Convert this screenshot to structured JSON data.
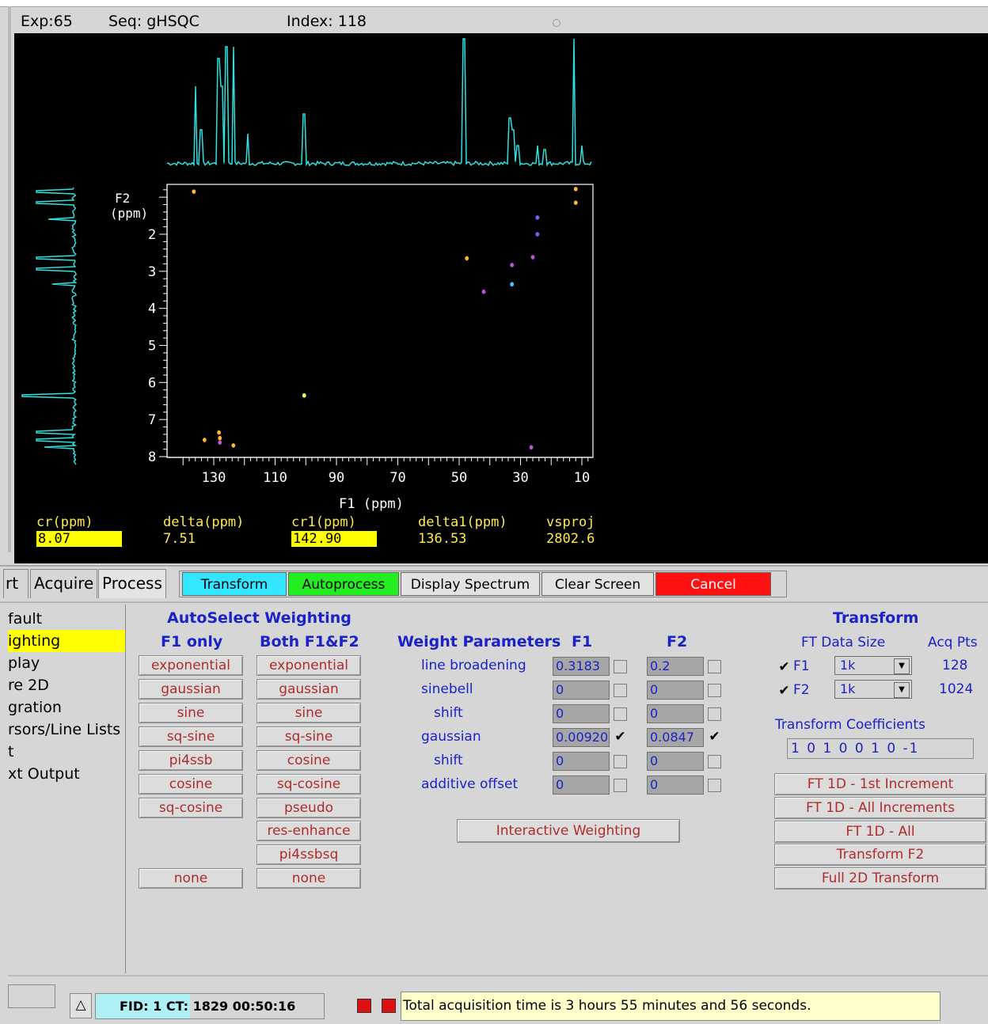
{
  "status": {
    "exp": "Exp:65",
    "seq": "Seq: gHSQC",
    "index": "Index: 118"
  },
  "plot": {
    "f2_label": "F2",
    "f2_unit": "(ppm)",
    "f2_ticks": [
      "2",
      "3",
      "4",
      "5",
      "6",
      "7",
      "8"
    ],
    "f1_ticks": [
      "130",
      "110",
      "90",
      "70",
      "50",
      "30",
      "10"
    ],
    "f1_axis_label": "F1  (ppm)",
    "projection_color": "#2fe0e0",
    "axis_color": "#ffffff",
    "peaks": [
      {
        "f1": 136.5,
        "f2": 0.85,
        "color": "#ffb830"
      },
      {
        "f1": 12.0,
        "f2": 0.78,
        "color": "#ffb830"
      },
      {
        "f1": 12.0,
        "f2": 1.15,
        "color": "#ffb830"
      },
      {
        "f1": 24.5,
        "f2": 1.55,
        "color": "#6a6aff"
      },
      {
        "f1": 24.5,
        "f2": 2.0,
        "color": "#6a6aff"
      },
      {
        "f1": 47.5,
        "f2": 2.65,
        "color": "#ffb830"
      },
      {
        "f1": 26.0,
        "f2": 2.62,
        "color": "#c050e0"
      },
      {
        "f1": 32.8,
        "f2": 2.83,
        "color": "#c050e0"
      },
      {
        "f1": 32.8,
        "f2": 3.35,
        "color": "#40c8ff"
      },
      {
        "f1": 42.0,
        "f2": 3.55,
        "color": "#c050e0"
      },
      {
        "f1": 100.5,
        "f2": 6.35,
        "color": "#ffff40"
      },
      {
        "f1": 133.0,
        "f2": 7.55,
        "color": "#ffb830"
      },
      {
        "f1": 128.3,
        "f2": 7.35,
        "color": "#ffb830"
      },
      {
        "f1": 128.0,
        "f2": 7.5,
        "color": "#ffb830"
      },
      {
        "f1": 128.0,
        "f2": 7.62,
        "color": "#c050e0"
      },
      {
        "f1": 123.6,
        "f2": 7.7,
        "color": "#ffb830"
      },
      {
        "f1": 26.5,
        "f2": 7.75,
        "color": "#c050e0"
      }
    ]
  },
  "readouts": [
    {
      "label": "cr(ppm)",
      "value": "8.07",
      "highlight": true
    },
    {
      "label": "delta(ppm)",
      "value": "7.51",
      "highlight": false
    },
    {
      "label": "cr1(ppm)",
      "value": "142.90",
      "highlight": true
    },
    {
      "label": "delta1(ppm)",
      "value": "136.53",
      "highlight": false
    },
    {
      "label": "vsproj",
      "value": "2802.6",
      "highlight": false
    }
  ],
  "tabs": [
    "rt",
    "Acquire",
    "Process"
  ],
  "commands": {
    "transform": "Transform",
    "autoprocess": "Autoprocess",
    "display_spectrum": "Display Spectrum",
    "clear_screen": "Clear Screen",
    "cancel": "Cancel"
  },
  "colors": {
    "transform": "#33e6ff",
    "autoprocess": "#22ee22",
    "cancel": "#ff1111",
    "highlight": "#ffff00"
  },
  "left_menu": [
    "fault",
    "ighting",
    "play",
    "re 2D",
    "gration",
    "rsors/Line Lists",
    "t",
    "xt Output"
  ],
  "autoselect": {
    "title": "AutoSelect Weighting",
    "f1_only_label": "F1 only",
    "both_label": "Both F1&F2",
    "f1_only": [
      "exponential",
      "gaussian",
      "sine",
      "sq-sine",
      "pi4ssb",
      "cosine",
      "sq-cosine"
    ],
    "both": [
      "exponential",
      "gaussian",
      "sine",
      "sq-sine",
      "cosine",
      "sq-cosine",
      "pseudo",
      "res-enhance",
      "pi4ssbsq"
    ],
    "none": "none"
  },
  "weights": {
    "title": "Weight Parameters",
    "f1": "F1",
    "f2": "F2",
    "rows": [
      {
        "label": "line broadening",
        "f1": "0.3183",
        "f1_checked": false,
        "f2": "0.2",
        "f2_checked": false
      },
      {
        "label": "sinebell",
        "f1": "0",
        "f1_checked": false,
        "f2": "0",
        "f2_checked": false
      },
      {
        "label": "shift",
        "f1": "0",
        "f1_checked": false,
        "f2": "0",
        "f2_checked": false
      },
      {
        "label": "gaussian",
        "f1": "0.00920",
        "f1_checked": true,
        "f2": "0.0847",
        "f2_checked": true
      },
      {
        "label": "shift",
        "f1": "0",
        "f1_checked": false,
        "f2": "0",
        "f2_checked": false
      },
      {
        "label": "additive offset",
        "f1": "0",
        "f1_checked": false,
        "f2": "0",
        "f2_checked": false
      }
    ],
    "interactive": "Interactive Weighting"
  },
  "transform": {
    "title": "Transform",
    "ft_size_label": "FT Data Size",
    "acq_label": "Acq Pts",
    "f1": {
      "label": "F1",
      "checked": true,
      "size": "1k",
      "acq": "128"
    },
    "f2": {
      "label": "F2",
      "checked": true,
      "size": "1k",
      "acq": "1024"
    },
    "coeff_label": "Transform Coefficients",
    "coeff_value": "1 0 1 0 0 1 0 -1",
    "buttons": [
      "FT 1D - 1st Increment",
      "FT 1D - All Increments",
      "FT 1D - All",
      "Transform F2",
      "Full 2D Transform"
    ]
  },
  "bottom": {
    "fid": "FID: 1 CT: 1829  00:50:16",
    "message": "Total acquisition time is 3 hours 55 minutes and 56 seconds."
  }
}
